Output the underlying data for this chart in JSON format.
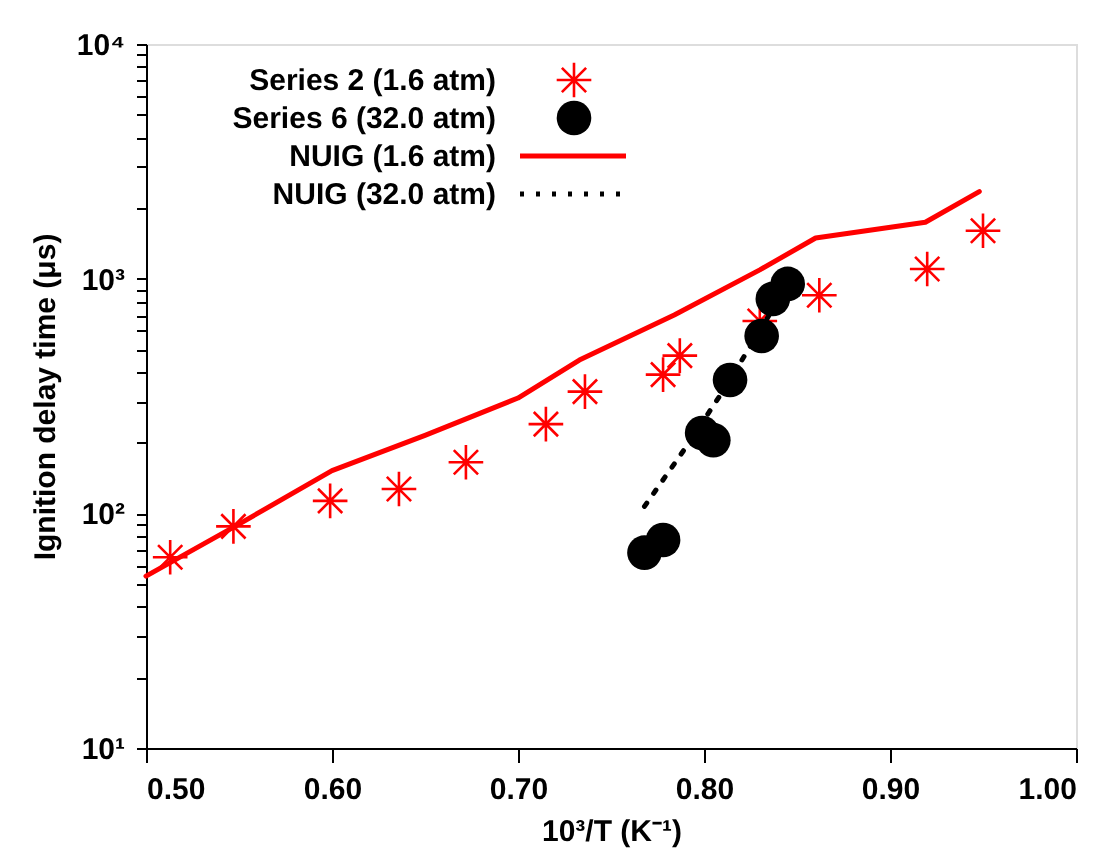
{
  "chart_data": {
    "type": "scatter",
    "xlabel": "10³/T (K⁻¹)",
    "ylabel": "Ignition delay time (μs)",
    "xlim": [
      0.5,
      1.0
    ],
    "ylim": [
      10,
      10000
    ],
    "xticks": [
      {
        "value": 0.5,
        "label": "0.50"
      },
      {
        "value": 0.6,
        "label": "0.60"
      },
      {
        "value": 0.7,
        "label": "0.70"
      },
      {
        "value": 0.8,
        "label": "0.80"
      },
      {
        "value": 0.9,
        "label": "0.90"
      },
      {
        "value": 1.0,
        "label": "1.00"
      }
    ],
    "yticks": [
      {
        "value": 10,
        "label": "10¹"
      },
      {
        "value": 20,
        "label": null
      },
      {
        "value": 30,
        "label": null
      },
      {
        "value": 40,
        "label": null
      },
      {
        "value": 50,
        "label": null
      },
      {
        "value": 60,
        "label": null
      },
      {
        "value": 70,
        "label": null
      },
      {
        "value": 80,
        "label": null
      },
      {
        "value": 90,
        "label": null
      },
      {
        "value": 100,
        "label": "10²"
      },
      {
        "value": 200,
        "label": null
      },
      {
        "value": 300,
        "label": null
      },
      {
        "value": 400,
        "label": null
      },
      {
        "value": 500,
        "label": null
      },
      {
        "value": 600,
        "label": null
      },
      {
        "value": 700,
        "label": null
      },
      {
        "value": 800,
        "label": null
      },
      {
        "value": 900,
        "label": null
      },
      {
        "value": 1000,
        "label": "10³"
      },
      {
        "value": 2000,
        "label": null
      },
      {
        "value": 3000,
        "label": null
      },
      {
        "value": 4000,
        "label": null
      },
      {
        "value": 5000,
        "label": null
      },
      {
        "value": 6000,
        "label": null
      },
      {
        "value": 7000,
        "label": null
      },
      {
        "value": 8000,
        "label": null
      },
      {
        "value": 9000,
        "label": null
      },
      {
        "value": 10000,
        "label": "10⁴"
      }
    ],
    "log": "y",
    "grid": false,
    "legend": "top left",
    "series": [
      {
        "name": "Series 2 (1.6 atm)",
        "type": "scatter",
        "marker": "cross",
        "color": "#ff0000",
        "x": [
          0.513,
          0.547,
          0.599,
          0.636,
          0.672,
          0.715,
          0.736,
          0.778,
          0.787,
          0.83,
          0.862,
          0.92,
          0.95
        ],
        "values": [
          65,
          88,
          113,
          127,
          165,
          240,
          330,
          390,
          470,
          660,
          850,
          1100,
          1600
        ]
      },
      {
        "name": "Series 6 (32.0 atm)",
        "type": "scatter",
        "marker": "circle",
        "color": "#000000",
        "x": [
          0.768,
          0.778,
          0.799,
          0.805,
          0.814,
          0.831,
          0.837,
          0.845
        ],
        "values": [
          68,
          77,
          220,
          205,
          370,
          570,
          820,
          950
        ]
      },
      {
        "name": "NUIG  (1.6 atm)",
        "type": "line",
        "line_style": "solid",
        "color": "#ff0000",
        "x": [
          0.5,
          0.55,
          0.6,
          0.65,
          0.7,
          0.733,
          0.784,
          0.83,
          0.86,
          0.919,
          0.948
        ],
        "values": [
          54,
          90,
          152,
          215,
          310,
          450,
          700,
          1090,
          1490,
          1740,
          2350
        ]
      },
      {
        "name": "NUIG (32.0 atm)",
        "type": "line",
        "line_style": "dotted",
        "color": "#000000",
        "x": [
          0.768,
          0.79,
          0.81,
          0.83,
          0.845
        ],
        "values": [
          107,
          190,
          330,
          600,
          950
        ]
      }
    ]
  }
}
